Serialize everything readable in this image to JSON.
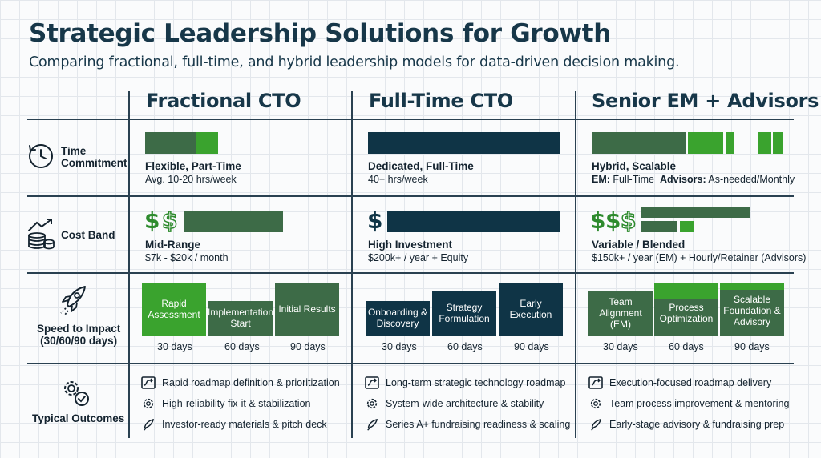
{
  "header": {
    "title": "Strategic Leadership Solutions for Growth",
    "subtitle": "Comparing fractional, full-time, and hybrid leadership models for data-driven decision making."
  },
  "columns": [
    "Fractional CTO",
    "Full-Time CTO",
    "Senior EM + Advisors"
  ],
  "rows": {
    "time": {
      "label_line1": "Time",
      "label_line2": "Commitment",
      "icon": "clock-icon"
    },
    "cost": {
      "label": "Cost Band",
      "icon": "coins-growth-icon"
    },
    "speed": {
      "label_line1": "Speed to Impact",
      "label_line2": "(30/60/90 days)",
      "icon": "rocket-icon"
    },
    "outcomes": {
      "label": "Typical Outcomes",
      "icon": "gears-check-icon"
    }
  },
  "time": [
    {
      "title": "Flexible, Part-Time",
      "sub": "Avg. 10-20 hrs/week"
    },
    {
      "title": "Dedicated, Full-Time",
      "sub": "40+ hrs/week"
    },
    {
      "title": "Hybrid, Scalable",
      "sub_em_label": "EM:",
      "sub_em_value": " Full-Time",
      "sub_adv_label": "Advisors:",
      "sub_adv_value": " As-needed/Monthly"
    }
  ],
  "cost": [
    {
      "symbol": "$",
      "title": "Mid-Range",
      "sub": "$7k - $20k / month"
    },
    {
      "symbol": "$",
      "title": "High Investment",
      "sub": "$200k+ / year + Equity"
    },
    {
      "symbol": "$",
      "title": "Variable / Blended",
      "sub": "$150k+ / year (EM) + Hourly/Retainer (Advisors)"
    }
  ],
  "speed": [
    {
      "phases": [
        "Rapid Assessment",
        "Implementation Start",
        "Initial Results"
      ]
    },
    {
      "phases": [
        "Onboarding & Discovery",
        "Strategy Formulation",
        "Early Execution"
      ]
    },
    {
      "phases": [
        "Team Alignment (EM)",
        "Process Optimization",
        "Scalable Foundation & Advisory"
      ]
    }
  ],
  "days": [
    "30 days",
    "60 days",
    "90 days"
  ],
  "outcomes": [
    [
      "Rapid roadmap definition & prioritization",
      "High-reliability fix-it & stabilization",
      "Investor-ready materials & pitch deck"
    ],
    [
      "Long-term strategic technology roadmap",
      "System-wide architecture & stability",
      "Series A+ fundraising readiness & scaling"
    ],
    [
      "Execution-focused roadmap delivery",
      "Team process improvement & mentoring",
      "Early-stage advisory & fundraising prep"
    ]
  ],
  "outcome_icons": [
    "roadmap-icon",
    "gear-icon",
    "rocket-icon"
  ],
  "colors": {
    "navy": "#0f3446",
    "green": "#2e8b2e",
    "muted_green": "#3d6b47",
    "text": "#14232f"
  }
}
